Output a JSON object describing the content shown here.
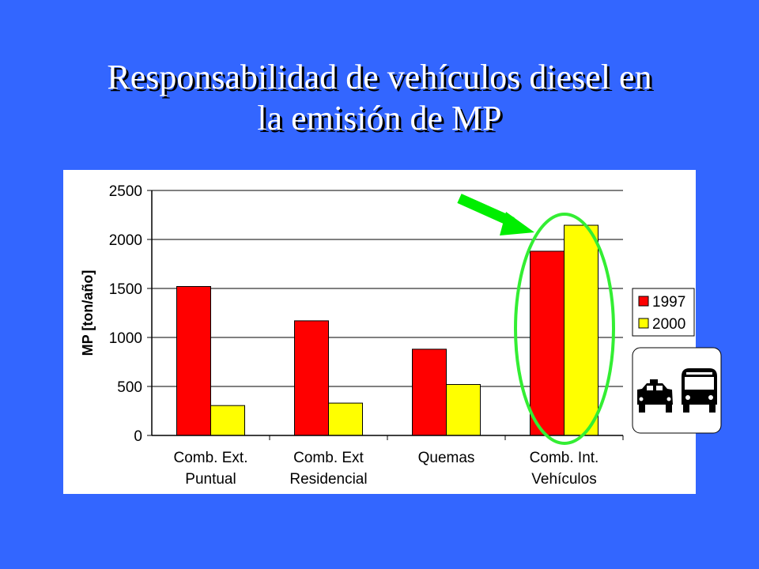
{
  "slide": {
    "title_line1": "Responsabilidad de vehículos diesel en",
    "title_line2": "la emisión de MP",
    "background": "#3366FF"
  },
  "chart_data": {
    "type": "bar",
    "categories": [
      [
        "Comb. Ext.",
        "Puntual"
      ],
      [
        "Comb. Ext",
        "Residencial"
      ],
      [
        "Quemas",
        ""
      ],
      [
        "Comb. Int.",
        "Vehículos"
      ]
    ],
    "series": [
      {
        "name": "1997",
        "color": "#FF0000",
        "values": [
          1520,
          1170,
          880,
          1880
        ]
      },
      {
        "name": "2000",
        "color": "#FFFF00",
        "values": [
          305,
          330,
          520,
          2145
        ]
      }
    ],
    "ylabel": "MP [ton/año]",
    "ylim": [
      0,
      2500
    ],
    "yticks": [
      0,
      500,
      1000,
      1500,
      2000,
      2500
    ],
    "grid": "horizontal",
    "legend": "right",
    "highlight": {
      "category_index": 3,
      "ellipse_color": "#33EE33",
      "arrow_color": "#00EE00"
    },
    "icon": "taxi-and-bus-icon"
  }
}
